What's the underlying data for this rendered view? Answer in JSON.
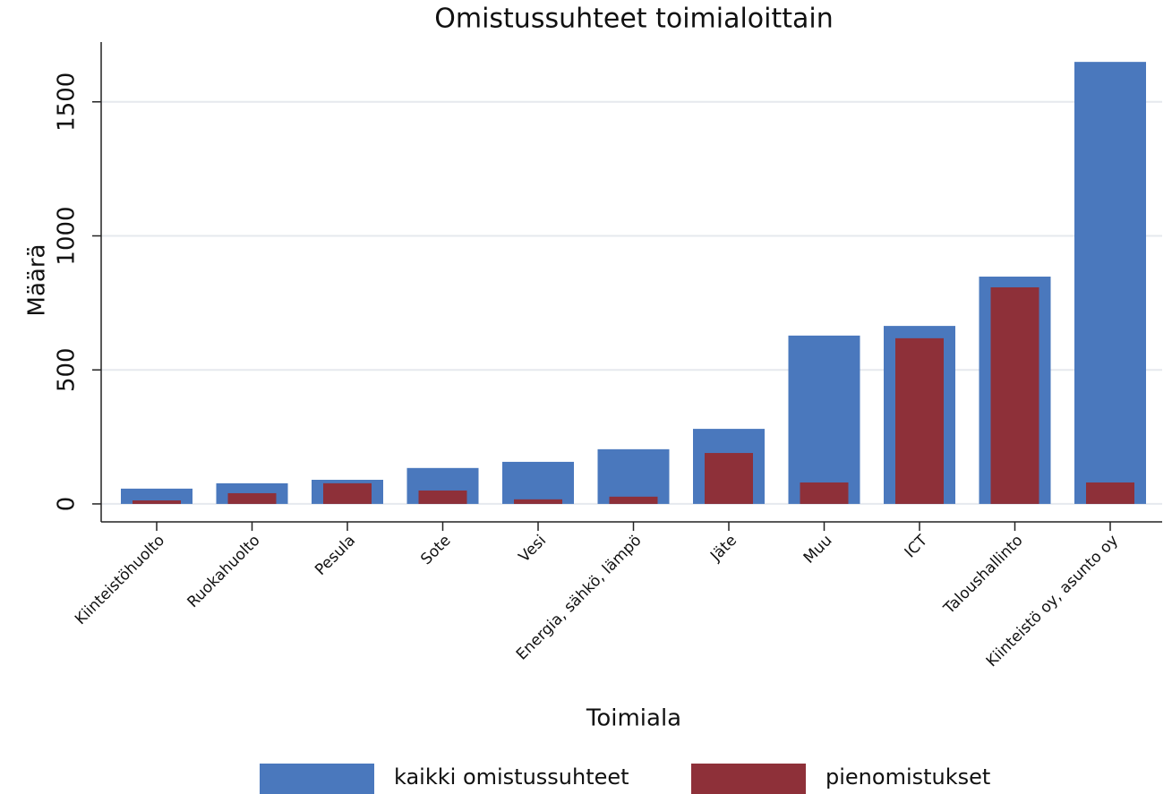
{
  "chart_data": {
    "type": "bar",
    "title": "Omistussuhteet toimialoittain",
    "x_label": "Toimiala",
    "y_label": "Määrä",
    "categories": [
      "Kiinteistöhuolto",
      "Ruokahuolto",
      "Pesula",
      "Sote",
      "Vesi",
      "Energia, sähkö, lämpö",
      "Jäte",
      "Muu",
      "ICT",
      "Taloushallinto",
      "Kiinteistö oy, asunto oy"
    ],
    "series": [
      {
        "name": "kaikki omistussuhteet",
        "color": "#4a78bd",
        "values": [
          57,
          77,
          90,
          134,
          157,
          204,
          280,
          628,
          664,
          848,
          1649
        ]
      },
      {
        "name": "pienomistukset",
        "color": "#8e3039",
        "values": [
          13,
          40,
          77,
          50,
          17,
          27,
          190,
          80,
          618,
          808,
          80
        ]
      }
    ],
    "ylim": [
      -67,
      1723
    ],
    "yticks": [
      0,
      500,
      1000,
      1500
    ],
    "grid": true,
    "legend": "bottom"
  }
}
